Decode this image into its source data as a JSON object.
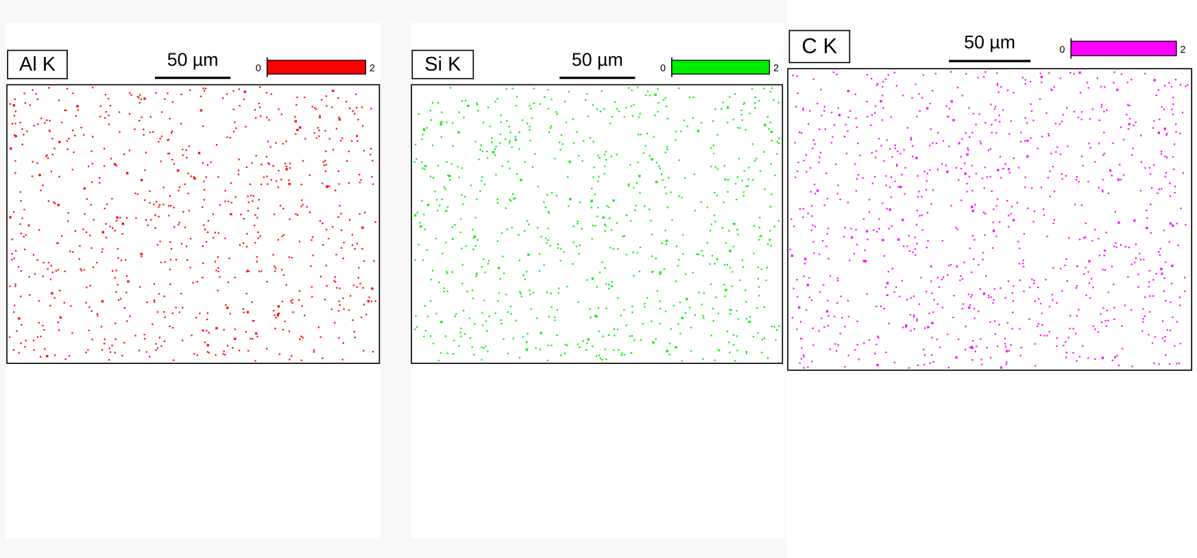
{
  "panels": [
    {
      "label": "Al K",
      "scale_bar": "50 µm",
      "colorbar": {
        "min": 0,
        "max": 2,
        "color": "#ff0000"
      }
    },
    {
      "label": "Si K",
      "scale_bar": "50 µm",
      "colorbar": {
        "min": 0,
        "max": 2,
        "color": "#00ee00"
      }
    },
    {
      "label": "C K",
      "scale_bar": "50 µm",
      "colorbar": {
        "min": 0,
        "max": 2,
        "color": "#ff00ff"
      }
    }
  ]
}
